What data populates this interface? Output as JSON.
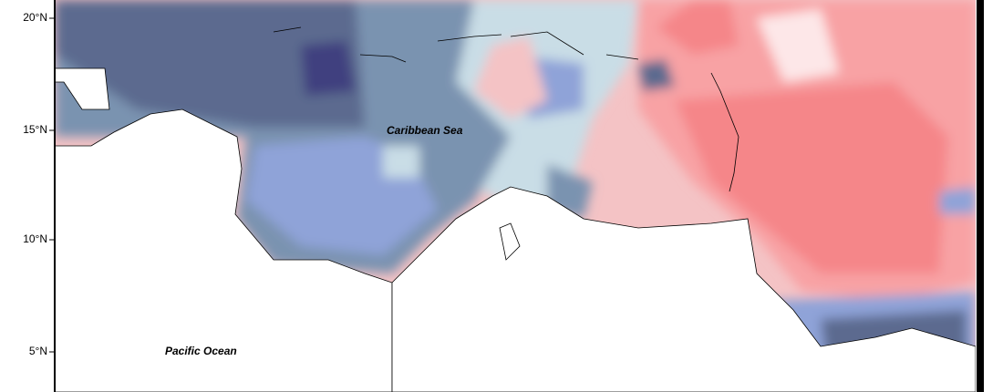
{
  "map": {
    "lat_ticks": [
      "20°N",
      "15°N",
      "10°N",
      "5°N"
    ],
    "labels": [
      "Caribbean Sea",
      "Pacific Ocean"
    ]
  }
}
